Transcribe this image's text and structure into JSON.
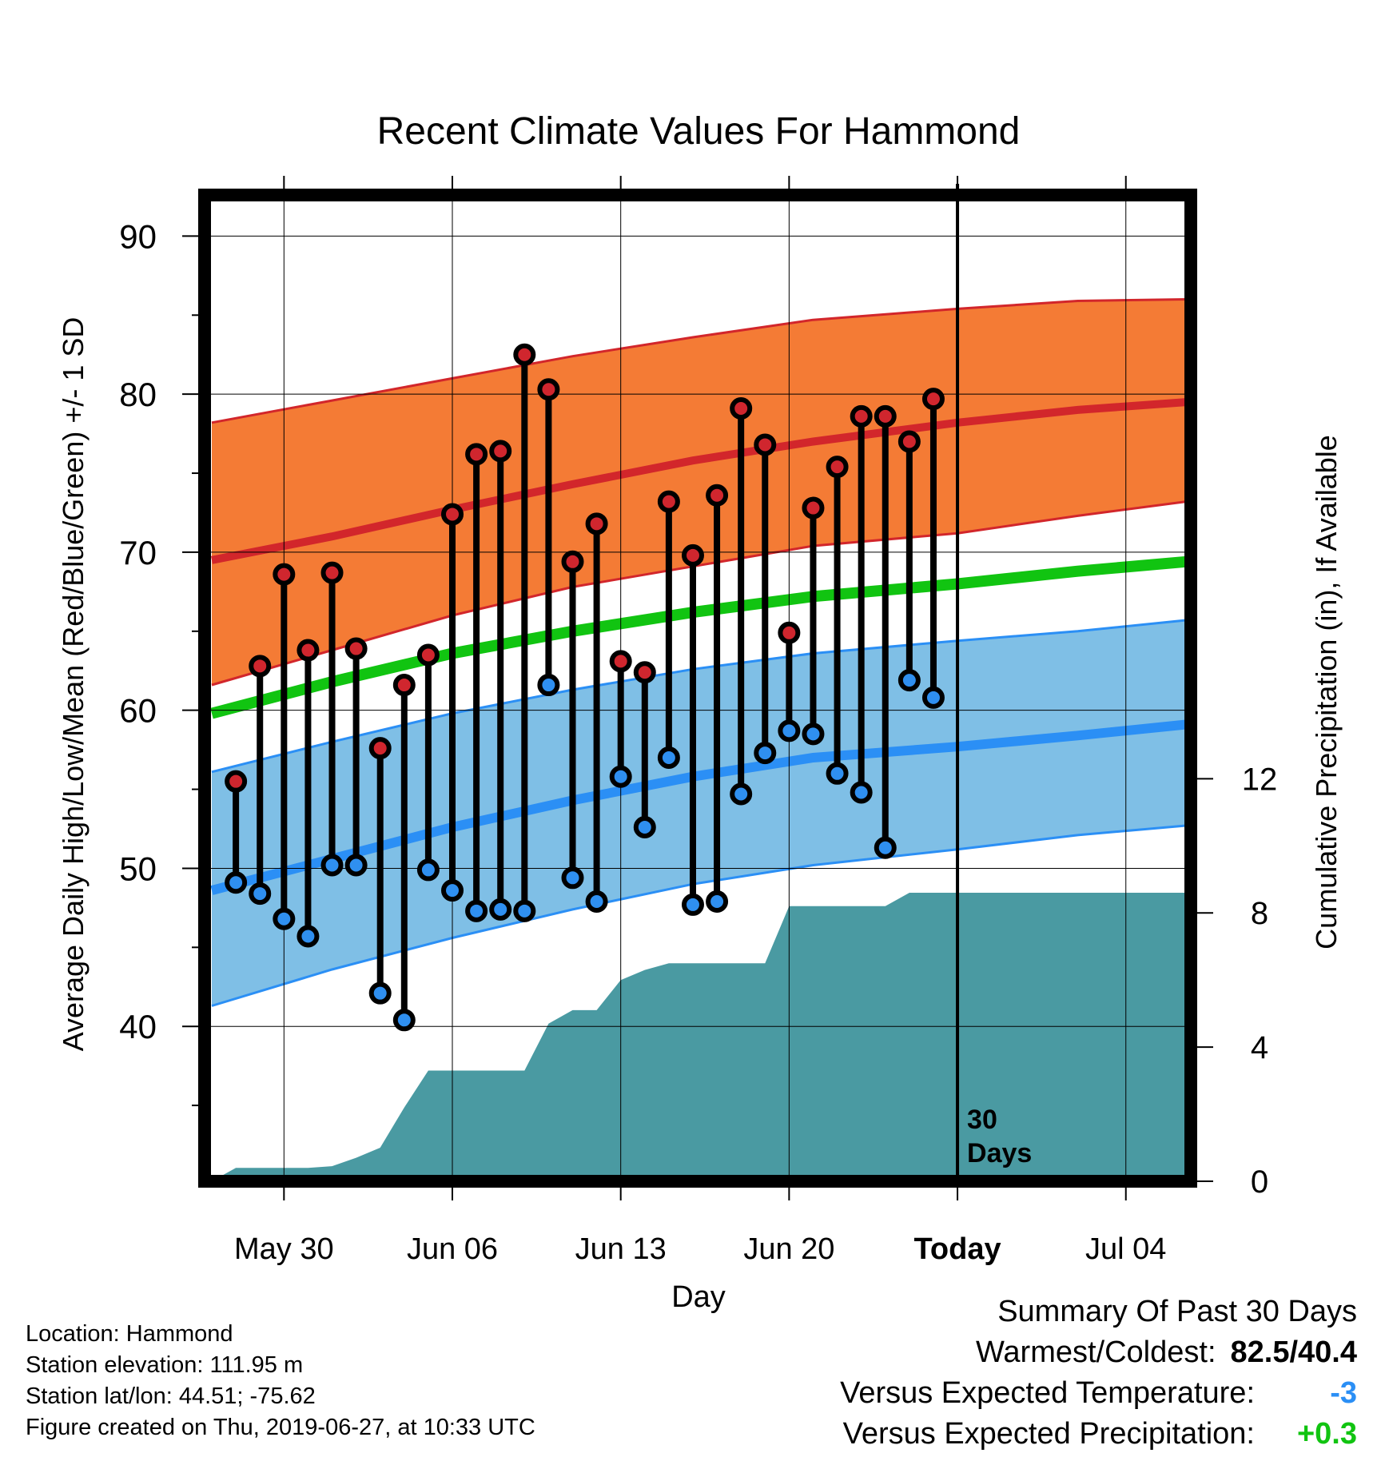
{
  "chart_data": {
    "type": "line",
    "title": "Recent Climate Values For Hammond",
    "xlabel": "Day",
    "ylabel": "Average Daily High/Low/Mean (Red/Blue/Green) +/- 1 SD",
    "y2label": "Cumulative Precipitation (in), If Available",
    "x_tick_labels": [
      "May 30",
      "Jun 06",
      "Jun 13",
      "Jun 20",
      "Today",
      "Jul 04"
    ],
    "y_ticks": [
      40,
      50,
      60,
      70,
      80,
      90
    ],
    "y2_ticks": [
      0,
      4,
      8,
      12
    ],
    "ylim": [
      30.2,
      92.6
    ],
    "y2lim": [
      0,
      29.4
    ],
    "xlim_days_relative_to_today": [
      -31.3,
      9.7
    ],
    "today_label": "30\nDays",
    "normals": {
      "days_relative_to_today": [
        -31,
        -26,
        -21,
        -16,
        -11,
        -6,
        0,
        5,
        9.5
      ],
      "high_upper_sd": [
        78.2,
        79.6,
        81.0,
        82.4,
        83.6,
        84.7,
        85.4,
        85.9,
        86.0
      ],
      "high_mean": [
        69.5,
        71.0,
        72.7,
        74.3,
        75.8,
        77.0,
        78.2,
        79.0,
        79.5
      ],
      "high_lower_sd": [
        61.6,
        63.8,
        66.0,
        67.8,
        69.1,
        70.4,
        71.2,
        72.3,
        73.2
      ],
      "mean": [
        59.8,
        61.8,
        63.6,
        65.0,
        66.2,
        67.2,
        68.0,
        68.8,
        69.4
      ],
      "low_upper_sd": [
        56.1,
        58.0,
        59.8,
        61.3,
        62.6,
        63.6,
        64.4,
        65.0,
        65.7
      ],
      "low_mean": [
        48.6,
        50.6,
        52.6,
        54.3,
        55.8,
        57.0,
        57.7,
        58.4,
        59.1
      ],
      "low_lower_sd": [
        41.3,
        43.6,
        45.6,
        47.4,
        49.0,
        50.2,
        51.2,
        52.1,
        52.7
      ]
    },
    "series": [
      {
        "name": "High",
        "days_relative_to_today": [
          -30,
          -29,
          -28,
          -27,
          -26,
          -25,
          -24,
          -23,
          -22,
          -21,
          -20,
          -19,
          -18,
          -17,
          -16,
          -15,
          -14,
          -13,
          -12,
          -11,
          -10,
          -9,
          -8,
          -7,
          -6,
          -5,
          -4,
          -3,
          -2,
          -1
        ],
        "values": [
          55.5,
          62.8,
          68.6,
          63.8,
          68.7,
          63.9,
          57.6,
          61.6,
          63.5,
          72.4,
          76.2,
          76.4,
          82.5,
          80.3,
          69.4,
          71.8,
          63.1,
          62.4,
          73.2,
          69.8,
          73.6,
          79.1,
          76.8,
          64.9,
          72.8,
          75.4,
          78.6,
          78.6,
          77.0,
          79.7
        ]
      },
      {
        "name": "Low",
        "days_relative_to_today": [
          -30,
          -29,
          -28,
          -27,
          -26,
          -25,
          -24,
          -23,
          -22,
          -21,
          -20,
          -19,
          -18,
          -17,
          -16,
          -15,
          -14,
          -13,
          -12,
          -11,
          -10,
          -9,
          -8,
          -7,
          -6,
          -5,
          -4,
          -3,
          -2,
          -1
        ],
        "values": [
          49.1,
          48.4,
          46.8,
          45.7,
          50.2,
          50.2,
          42.1,
          40.4,
          49.9,
          48.6,
          47.3,
          47.4,
          47.3,
          61.6,
          49.4,
          47.9,
          55.8,
          52.6,
          57.0,
          47.7,
          47.9,
          54.7,
          57.3,
          58.7,
          58.5,
          56.0,
          54.8,
          51.3,
          61.9,
          60.8
        ]
      }
    ],
    "precipitation": {
      "days_relative_to_today": [
        -31,
        -30,
        -27,
        -26,
        -25,
        -24,
        -23,
        -22,
        -18,
        -17,
        -16,
        -15,
        -14,
        -13,
        -12,
        -9,
        -8,
        -7,
        -6,
        -3,
        -2,
        0,
        9.5
      ],
      "values": [
        0.0,
        0.4,
        0.4,
        0.45,
        0.7,
        1.0,
        2.2,
        3.3,
        3.3,
        4.7,
        5.1,
        5.1,
        6.0,
        6.3,
        6.5,
        6.5,
        6.5,
        8.2,
        8.2,
        8.2,
        8.6,
        8.6,
        8.6
      ]
    },
    "colors": {
      "high_band": "#f47b35",
      "high_mean": "#d2262b",
      "mean": "#11c411",
      "low_band": "#7fbfe6",
      "low_mean": "#2b8ff5",
      "precip": "#4a9aa2",
      "high_marker": "#d0262e",
      "low_marker": "#2f8ff0"
    }
  },
  "footer": {
    "location": "Location: Hammond",
    "elevation": "Station elevation: 111.95 m",
    "latlon": "Station lat/lon: 44.51; -75.62",
    "created": "Figure created on Thu, 2019-06-27, at 10:33 UTC"
  },
  "summary": {
    "title": "Summary Of Past 30 Days",
    "warmest_coldest_label": "Warmest/Coldest:",
    "warmest_coldest_value": "82.5/40.4",
    "temp_label": "Versus Expected Temperature:",
    "temp_value": "-3",
    "temp_color": "#2b8ff5",
    "precip_label": "Versus Expected Precipitation:",
    "precip_value": "+0.3",
    "precip_color": "#11c411"
  }
}
